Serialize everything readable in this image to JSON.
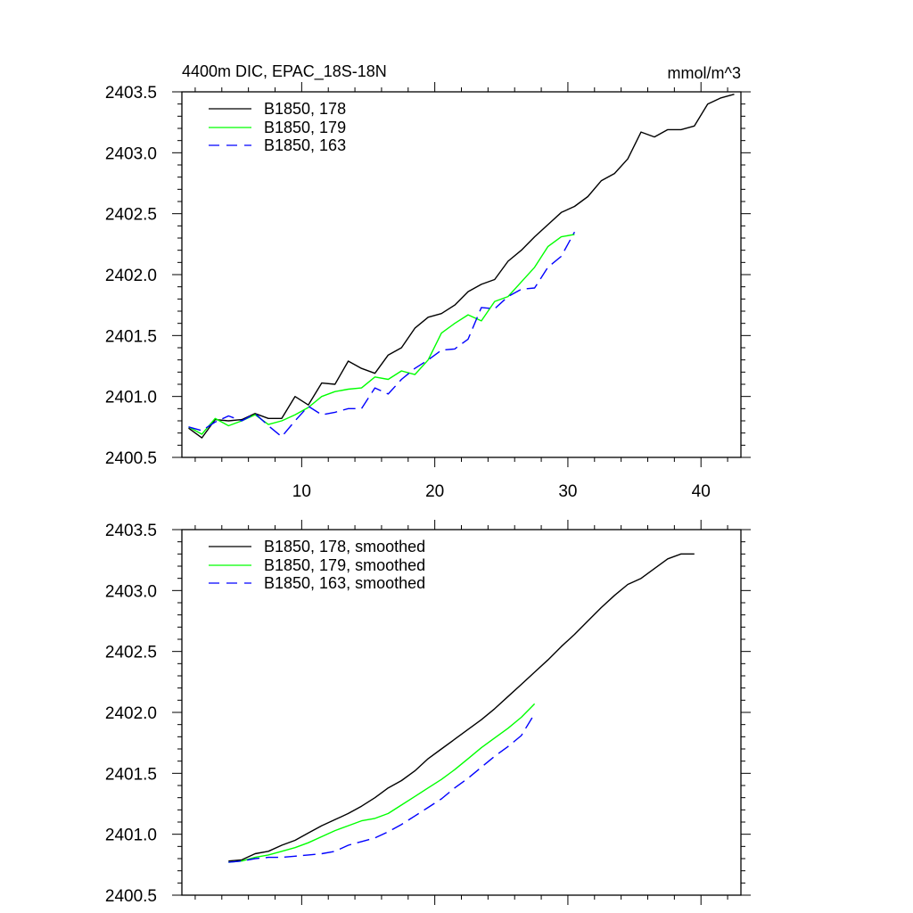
{
  "colors": {
    "s178": "#000000",
    "s179": "#00ff00",
    "s163": "#0000ff"
  },
  "chart_data": [
    {
      "type": "line",
      "title": "4400m DIC, EPAC_18S-18N",
      "units": "mmol/m^3",
      "xlim": [
        1,
        43
      ],
      "ylim": [
        2400.5,
        2403.5
      ],
      "xticks": [
        "10",
        "20",
        "30",
        "40"
      ],
      "yticks": [
        "2400.5",
        "2401.0",
        "2401.5",
        "2402.0",
        "2402.5",
        "2403.0",
        "2403.5"
      ],
      "legend_position": "top-left",
      "series": [
        {
          "name": "B1850, 178",
          "color": "#000000",
          "dash": "solid",
          "x": [
            1.5,
            2.5,
            3.5,
            4.5,
            5.5,
            6.5,
            7.5,
            8.5,
            9.5,
            10.5,
            11.5,
            12.5,
            13.5,
            14.5,
            15.5,
            16.5,
            17.5,
            18.5,
            19.5,
            20.5,
            21.5,
            22.5,
            23.5,
            24.5,
            25.5,
            26.5,
            27.5,
            28.5,
            29.5,
            30.5,
            31.5,
            32.5,
            33.5,
            34.5,
            35.5,
            36.5,
            37.5,
            38.5,
            39.5,
            40.5,
            41.5,
            42.5
          ],
          "y": [
            2400.74,
            2400.66,
            2400.81,
            2400.8,
            2400.81,
            2400.86,
            2400.82,
            2400.82,
            2401.0,
            2400.93,
            2401.11,
            2401.1,
            2401.29,
            2401.23,
            2401.19,
            2401.34,
            2401.4,
            2401.56,
            2401.65,
            2401.68,
            2401.75,
            2401.86,
            2401.92,
            2401.96,
            2402.11,
            2402.2,
            2402.31,
            2402.41,
            2402.51,
            2402.56,
            2402.64,
            2402.77,
            2402.83,
            2402.95,
            2403.17,
            2403.13,
            2403.19,
            2403.19,
            2403.22,
            2403.4,
            2403.45,
            2403.48
          ]
        },
        {
          "name": "B1850, 179",
          "color": "#00ff00",
          "dash": "solid",
          "x": [
            1.5,
            2.5,
            3.5,
            4.5,
            5.5,
            6.5,
            7.5,
            8.5,
            9.5,
            10.5,
            11.5,
            12.5,
            13.5,
            14.5,
            15.5,
            16.5,
            17.5,
            18.5,
            19.5,
            20.5,
            21.5,
            22.5,
            23.5,
            24.5,
            25.5,
            26.5,
            27.5,
            28.5,
            29.5,
            30.5
          ],
          "y": [
            2400.75,
            2400.69,
            2400.82,
            2400.76,
            2400.8,
            2400.85,
            2400.77,
            2400.8,
            2400.85,
            2400.91,
            2401.0,
            2401.04,
            2401.06,
            2401.07,
            2401.16,
            2401.14,
            2401.21,
            2401.18,
            2401.3,
            2401.52,
            2401.6,
            2401.67,
            2401.62,
            2401.78,
            2401.82,
            2401.94,
            2402.06,
            2402.23,
            2402.31,
            2402.33
          ]
        },
        {
          "name": "B1850, 163",
          "color": "#0000ff",
          "dash": "dashed",
          "x": [
            1.5,
            2.5,
            3.5,
            4.5,
            5.5,
            6.5,
            7.5,
            8.5,
            9.5,
            10.5,
            11.5,
            12.5,
            13.5,
            14.5,
            15.5,
            16.5,
            17.5,
            18.5,
            19.5,
            20.5,
            21.5,
            22.5,
            23.5,
            24.5,
            25.5,
            26.5,
            27.5,
            28.5,
            29.5,
            30.5
          ],
          "y": [
            2400.75,
            2400.72,
            2400.79,
            2400.84,
            2400.8,
            2400.86,
            2400.76,
            2400.67,
            2400.8,
            2400.92,
            2400.85,
            2400.87,
            2400.9,
            2400.9,
            2401.07,
            2401.02,
            2401.14,
            2401.23,
            2401.3,
            2401.38,
            2401.39,
            2401.47,
            2401.73,
            2401.72,
            2401.82,
            2401.88,
            2401.89,
            2402.06,
            2402.15,
            2402.35
          ]
        }
      ]
    },
    {
      "type": "line",
      "title": "",
      "units": "",
      "xlim": [
        1,
        43
      ],
      "ylim": [
        2400.5,
        2403.5
      ],
      "xticks": [],
      "yticks": [
        "2400.5",
        "2401.0",
        "2401.5",
        "2402.0",
        "2402.5",
        "2403.0",
        "2403.5"
      ],
      "legend_position": "top-left",
      "series": [
        {
          "name": "B1850, 178, smoothed",
          "color": "#000000",
          "dash": "solid",
          "x": [
            4.5,
            5.5,
            6.5,
            7.5,
            8.5,
            9.5,
            10.5,
            11.5,
            12.5,
            13.5,
            14.5,
            15.5,
            16.5,
            17.5,
            18.5,
            19.5,
            20.5,
            21.5,
            22.5,
            23.5,
            24.5,
            25.5,
            26.5,
            27.5,
            28.5,
            29.5,
            30.5,
            31.5,
            32.5,
            33.5,
            34.5,
            35.5,
            36.5,
            37.5,
            38.5,
            39.5
          ],
          "y": [
            2400.78,
            2400.79,
            2400.84,
            2400.86,
            2400.91,
            2400.95,
            2401.01,
            2401.07,
            2401.12,
            2401.17,
            2401.23,
            2401.3,
            2401.38,
            2401.44,
            2401.52,
            2401.62,
            2401.7,
            2401.78,
            2401.86,
            2401.94,
            2402.03,
            2402.13,
            2402.23,
            2402.33,
            2402.43,
            2402.54,
            2402.64,
            2402.75,
            2402.86,
            2402.96,
            2403.05,
            2403.1,
            2403.18,
            2403.26,
            2403.3,
            2403.3
          ]
        },
        {
          "name": "B1850, 179, smoothed",
          "color": "#00ff00",
          "dash": "solid",
          "x": [
            4.5,
            5.5,
            6.5,
            7.5,
            8.5,
            9.5,
            10.5,
            11.5,
            12.5,
            13.5,
            14.5,
            15.5,
            16.5,
            17.5,
            18.5,
            19.5,
            20.5,
            21.5,
            22.5,
            23.5,
            24.5,
            25.5,
            26.5,
            27.5
          ],
          "y": [
            2400.77,
            2400.78,
            2400.81,
            2400.83,
            2400.86,
            2400.89,
            2400.93,
            2400.98,
            2401.03,
            2401.07,
            2401.11,
            2401.13,
            2401.17,
            2401.24,
            2401.31,
            2401.38,
            2401.45,
            2401.53,
            2401.62,
            2401.71,
            2401.79,
            2401.87,
            2401.96,
            2402.07
          ]
        },
        {
          "name": "B1850, 163, smoothed",
          "color": "#0000ff",
          "dash": "dashed",
          "x": [
            4.5,
            5.5,
            6.5,
            7.5,
            8.5,
            9.5,
            10.5,
            11.5,
            12.5,
            13.5,
            14.5,
            15.5,
            16.5,
            17.5,
            18.5,
            19.5,
            20.5,
            21.5,
            22.5,
            23.5,
            24.5,
            25.5,
            26.5,
            27.5
          ],
          "y": [
            2400.77,
            2400.78,
            2400.8,
            2400.81,
            2400.81,
            2400.82,
            2400.83,
            2400.84,
            2400.86,
            2400.91,
            2400.94,
            2400.97,
            2401.02,
            2401.08,
            2401.15,
            2401.22,
            2401.29,
            2401.38,
            2401.46,
            2401.55,
            2401.64,
            2401.72,
            2401.81,
            2401.99
          ]
        }
      ]
    }
  ]
}
